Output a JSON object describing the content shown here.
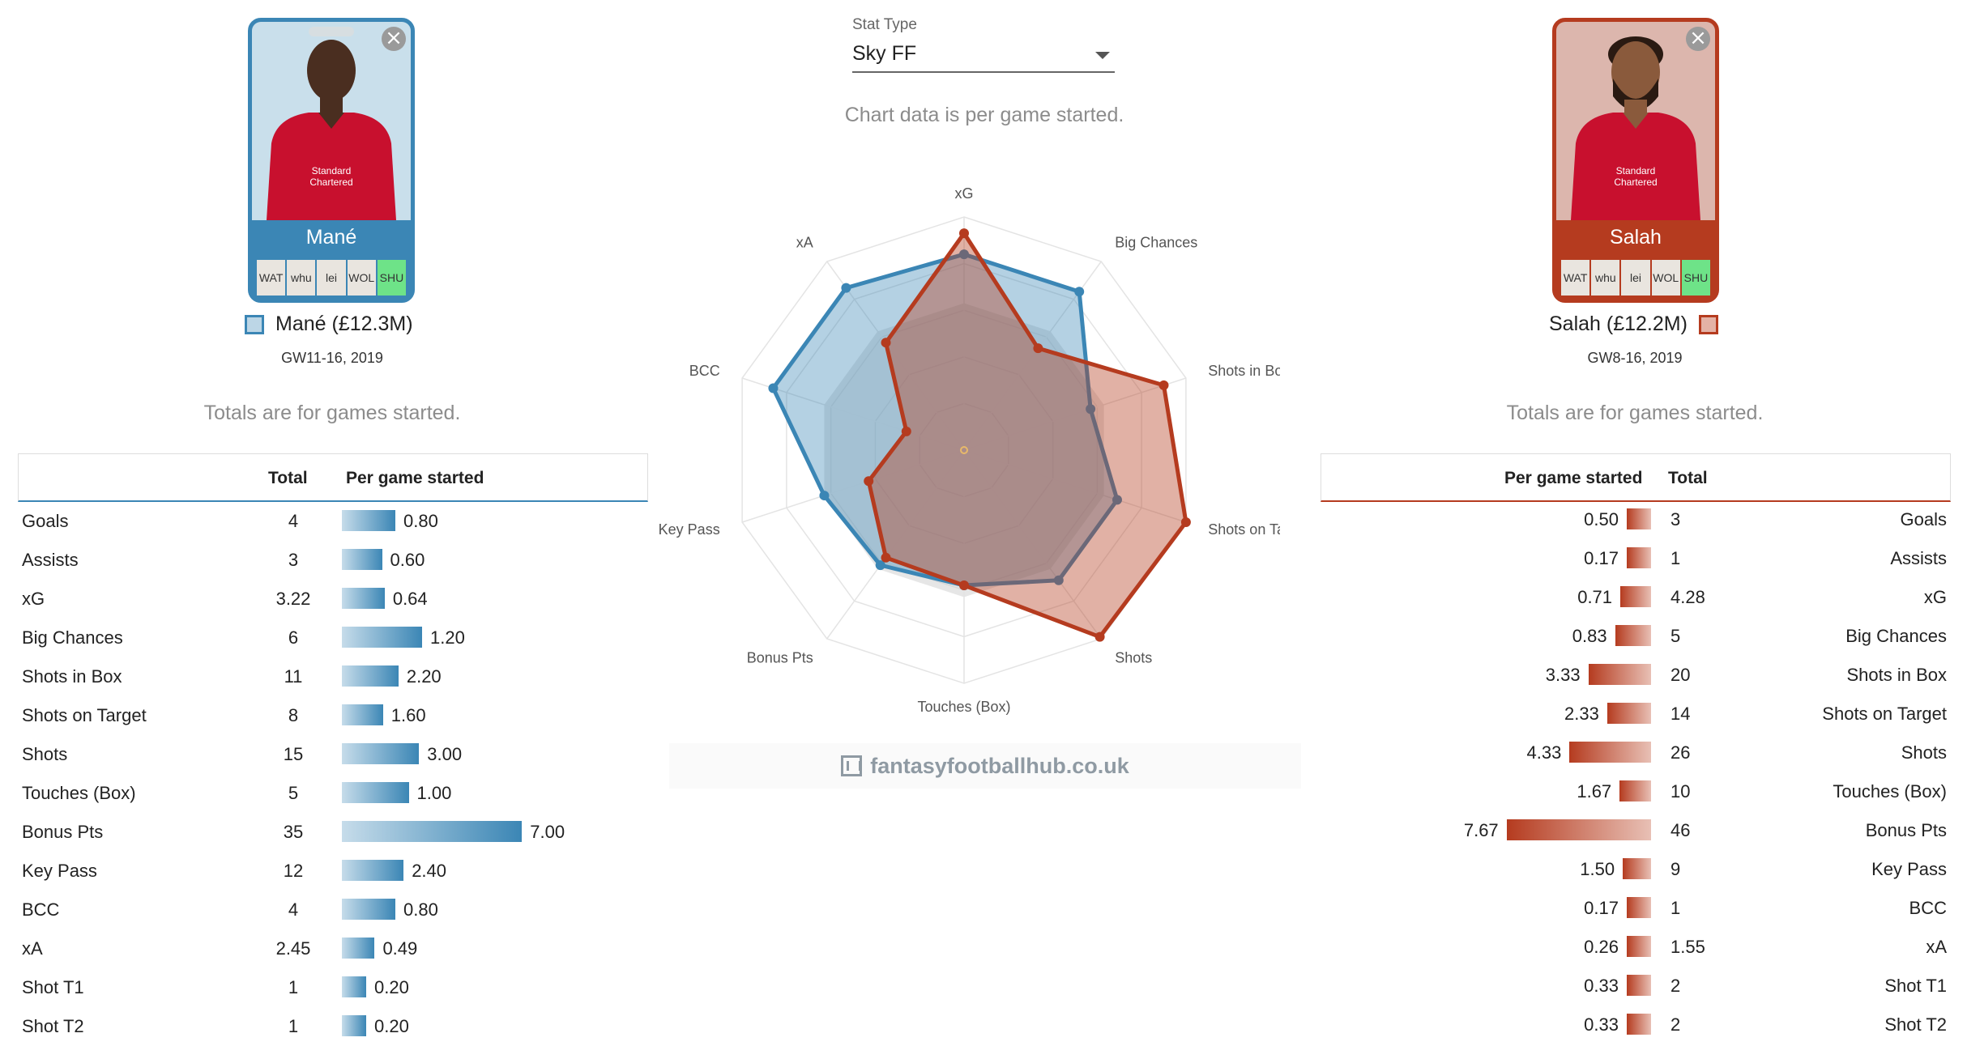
{
  "stat_type": {
    "label": "Stat Type",
    "value": "Sky FF"
  },
  "chart_note": "Chart data is per game started.",
  "watermark": "fantasyfootballhub.co.uk",
  "left_player": {
    "name": "Mané",
    "legend": "Mané (£12.3M)",
    "gw": "GW11-16, 2019",
    "note": "Totals are for games started.",
    "fixtures": [
      "WAT",
      "whu",
      "lei",
      "WOL",
      "SHU"
    ],
    "highlight_fixture": "SHU",
    "color": "#3b86b5",
    "header_total": "Total",
    "header_per_game": "Per game started",
    "rows": [
      {
        "stat": "Goals",
        "total": "4",
        "per_game": "0.80",
        "value": 0.8
      },
      {
        "stat": "Assists",
        "total": "3",
        "per_game": "0.60",
        "value": 0.6
      },
      {
        "stat": "xG",
        "total": "3.22",
        "per_game": "0.64",
        "value": 0.64
      },
      {
        "stat": "Big Chances",
        "total": "6",
        "per_game": "1.20",
        "value": 1.2
      },
      {
        "stat": "Shots in Box",
        "total": "11",
        "per_game": "2.20",
        "value": 2.2
      },
      {
        "stat": "Shots on Target",
        "total": "8",
        "per_game": "1.60",
        "value": 1.6
      },
      {
        "stat": "Shots",
        "total": "15",
        "per_game": "3.00",
        "value": 3.0
      },
      {
        "stat": "Touches (Box)",
        "total": "5",
        "per_game": "1.00",
        "value": 1.0
      },
      {
        "stat": "Bonus Pts",
        "total": "35",
        "per_game": "7.00",
        "value": 7.0
      },
      {
        "stat": "Key Pass",
        "total": "12",
        "per_game": "2.40",
        "value": 2.4
      },
      {
        "stat": "BCC",
        "total": "4",
        "per_game": "0.80",
        "value": 0.8
      },
      {
        "stat": "xA",
        "total": "2.45",
        "per_game": "0.49",
        "value": 0.49
      },
      {
        "stat": "Shot T1",
        "total": "1",
        "per_game": "0.20",
        "value": 0.2
      },
      {
        "stat": "Shot T2",
        "total": "1",
        "per_game": "0.20",
        "value": 0.2
      }
    ]
  },
  "right_player": {
    "name": "Salah",
    "legend": "Salah (£12.2M)",
    "gw": "GW8-16, 2019",
    "note": "Totals are for games started.",
    "fixtures": [
      "WAT",
      "whu",
      "lei",
      "WOL",
      "SHU"
    ],
    "highlight_fixture": "SHU",
    "color": "#b53b1f",
    "header_total": "Total",
    "header_per_game": "Per game started",
    "rows": [
      {
        "stat": "Goals",
        "total": "3",
        "per_game": "0.50",
        "value": 0.5
      },
      {
        "stat": "Assists",
        "total": "1",
        "per_game": "0.17",
        "value": 0.17
      },
      {
        "stat": "xG",
        "total": "4.28",
        "per_game": "0.71",
        "value": 0.71
      },
      {
        "stat": "Big Chances",
        "total": "5",
        "per_game": "0.83",
        "value": 0.83
      },
      {
        "stat": "Shots in Box",
        "total": "20",
        "per_game": "3.33",
        "value": 3.33
      },
      {
        "stat": "Shots on Target",
        "total": "14",
        "per_game": "2.33",
        "value": 2.33
      },
      {
        "stat": "Shots",
        "total": "26",
        "per_game": "4.33",
        "value": 4.33
      },
      {
        "stat": "Touches (Box)",
        "total": "10",
        "per_game": "1.67",
        "value": 1.67
      },
      {
        "stat": "Bonus Pts",
        "total": "46",
        "per_game": "7.67",
        "value": 7.67
      },
      {
        "stat": "Key Pass",
        "total": "9",
        "per_game": "1.50",
        "value": 1.5
      },
      {
        "stat": "BCC",
        "total": "1",
        "per_game": "0.17",
        "value": 0.17
      },
      {
        "stat": "xA",
        "total": "1.55",
        "per_game": "0.26",
        "value": 0.26
      },
      {
        "stat": "Shot T1",
        "total": "2",
        "per_game": "0.33",
        "value": 0.33
      },
      {
        "stat": "Shot T2",
        "total": "2",
        "per_game": "0.33",
        "value": 0.33
      }
    ]
  },
  "chart_data": {
    "type": "radar",
    "axes": [
      "xG",
      "Big Chances",
      "Shots in Box",
      "Shots on Target",
      "Shots",
      "Touches (Box)",
      "Bonus Pts",
      "Key Pass",
      "BCC",
      "xA"
    ],
    "rmax": 1,
    "series": [
      {
        "name": "Mané (£12.3M)",
        "color": "#3b86b5",
        "values": [
          0.84,
          0.84,
          0.57,
          0.69,
          0.69,
          0.58,
          0.61,
          0.63,
          0.86,
          0.86
        ]
      },
      {
        "name": "Salah (£12.2M)",
        "color": "#b53b1f",
        "values": [
          0.93,
          0.54,
          0.9,
          1.0,
          0.99,
          0.58,
          0.57,
          0.43,
          0.26,
          0.57
        ]
      }
    ],
    "reference": {
      "values": [
        0.63,
        0.63,
        0.63,
        0.63,
        0.63,
        0.63,
        0.63,
        0.63,
        0.63,
        0.63
      ]
    }
  }
}
